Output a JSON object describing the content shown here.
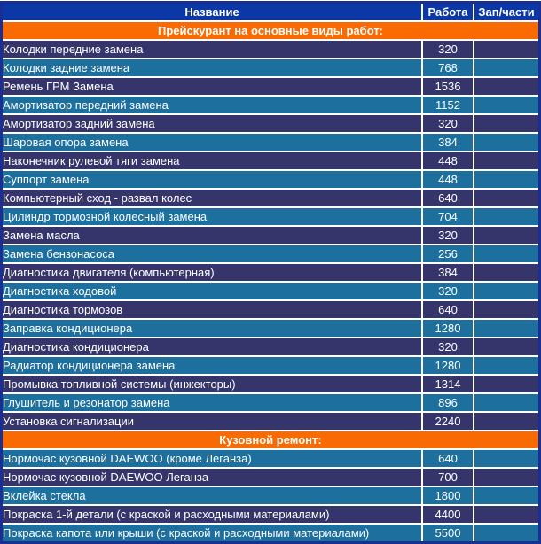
{
  "table": {
    "columns": [
      {
        "label": "Название"
      },
      {
        "label": "Работа"
      },
      {
        "label": "Зап/части"
      }
    ],
    "sections": [
      {
        "header": "Прейскурант на основные виды работ:",
        "rows": [
          {
            "name": "Колодки передние замена",
            "work": "320",
            "parts": ""
          },
          {
            "name": "Колодки задние замена",
            "work": "768",
            "parts": ""
          },
          {
            "name": "Ремень ГРМ Замена",
            "work": "1536",
            "parts": ""
          },
          {
            "name": "Амортизатор передний замена",
            "work": "1152",
            "parts": ""
          },
          {
            "name": "Амортизатор задний замена",
            "work": "320",
            "parts": ""
          },
          {
            "name": "Шаровая опора замена",
            "work": "384",
            "parts": ""
          },
          {
            "name": "Наконечник рулевой тяги замена",
            "work": "448",
            "parts": ""
          },
          {
            "name": "Суппорт замена",
            "work": "448",
            "parts": ""
          },
          {
            "name": "Компьютерный сход - развал колес",
            "work": "640",
            "parts": ""
          },
          {
            "name": "Цилиндр тормозной колесный замена",
            "work": "704",
            "parts": ""
          },
          {
            "name": "Замена масла",
            "work": "320",
            "parts": ""
          },
          {
            "name": "Замена бензонасоса",
            "work": "256",
            "parts": ""
          },
          {
            "name": "Диагностика двигателя (компьютерная)",
            "work": "384",
            "parts": ""
          },
          {
            "name": "Диагностика ходовой",
            "work": "320",
            "parts": ""
          },
          {
            "name": "Диагностика тормозов",
            "work": "640",
            "parts": ""
          },
          {
            "name": "Заправка кондиционера",
            "work": "1280",
            "parts": ""
          },
          {
            "name": "Диагностика кондиционера",
            "work": "320",
            "parts": ""
          },
          {
            "name": "Радиатор кондиционера замена",
            "work": "1280",
            "parts": ""
          },
          {
            "name": "Промывка топливной системы (инжекторы)",
            "work": "1314",
            "parts": ""
          },
          {
            "name": "Глушитель и резонатор замена",
            "work": "896",
            "parts": ""
          },
          {
            "name": "Установка сигнализации",
            "work": "2240",
            "parts": ""
          }
        ]
      },
      {
        "header": "Кузовной ремонт:",
        "rows": [
          {
            "name": "Нормочас кузовной DAEWOO (кроме Леганза)",
            "work": "640",
            "parts": ""
          },
          {
            "name": "Нормочас кузовной DAEWOO Леганза",
            "work": "700",
            "parts": ""
          },
          {
            "name": "Вклейка стекла",
            "work": "1800",
            "parts": ""
          },
          {
            "name": "Покраска 1-й детали (с краской и расходными материалами)",
            "work": "4400",
            "parts": ""
          },
          {
            "name": "Покраска капота или крыши (с краской и расходными материалами)",
            "work": "5500",
            "parts": ""
          }
        ]
      }
    ]
  },
  "colors": {
    "header_bg": "#0B38A6",
    "section_bg": "#FA6A03",
    "row_dark": "#35356B",
    "row_light": "#1D6F9E",
    "separator": "#FFFFFF",
    "outer_border": "#1B2E94",
    "text": "#FFFFFF"
  }
}
